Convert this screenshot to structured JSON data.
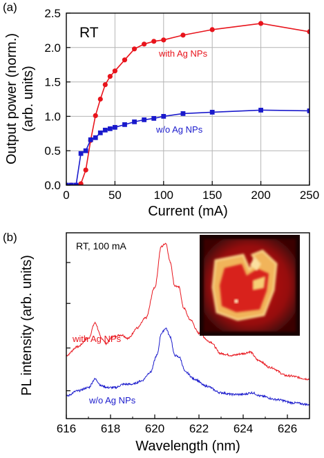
{
  "colors": {
    "with": "#e8141c",
    "without": "#1a1acc",
    "grid": "#b4b4b4"
  },
  "chart_data": [
    {
      "panel": "(a)",
      "type": "line",
      "corner_text": "RT",
      "xlabel": "Current (mA)",
      "ylabel_line1": "Output power (norm.)",
      "ylabel_line2": "(arb. units)",
      "xlim": [
        0,
        250
      ],
      "ylim": [
        0,
        2.5
      ],
      "x_ticks": [
        "0",
        "50",
        "100",
        "150",
        "200",
        "250"
      ],
      "y_ticks": [
        "0.0",
        "0.5",
        "1.0",
        "1.5",
        "2.0",
        "2.5"
      ],
      "grid": true,
      "series": [
        {
          "name": "with Ag NPs",
          "color": "#e8141c",
          "marker": "circle",
          "x": [
            0,
            5,
            10,
            15,
            20,
            25,
            30,
            35,
            40,
            45,
            50,
            60,
            70,
            80,
            90,
            100,
            120,
            150,
            200,
            250
          ],
          "y": [
            0,
            0,
            0,
            0.02,
            0.22,
            0.65,
            1.01,
            1.25,
            1.46,
            1.58,
            1.66,
            1.82,
            1.98,
            2.05,
            2.09,
            2.11,
            2.18,
            2.26,
            2.35,
            2.23
          ]
        },
        {
          "name": "w/o Ag NPs",
          "color": "#1a1acc",
          "marker": "square",
          "x": [
            0,
            5,
            10,
            15,
            20,
            25,
            30,
            35,
            40,
            45,
            50,
            60,
            70,
            80,
            90,
            100,
            120,
            150,
            200,
            250
          ],
          "y": [
            0,
            0,
            0,
            0.46,
            0.5,
            0.66,
            0.69,
            0.76,
            0.8,
            0.82,
            0.84,
            0.88,
            0.92,
            0.95,
            0.97,
            1.0,
            1.04,
            1.06,
            1.09,
            1.08
          ]
        }
      ]
    },
    {
      "panel": "(b)",
      "type": "line",
      "corner_text": "RT, 100 mA",
      "xlabel": "Wavelength (nm)",
      "ylabel": "PL intensity (arb. units)",
      "xlim": [
        616,
        627
      ],
      "x_ticks": [
        "616",
        "618",
        "620",
        "622",
        "624",
        "626"
      ],
      "inset": "false-color emission image of the device",
      "series": [
        {
          "name": "with Ag NPs",
          "color": "#e8141c",
          "x": [
            616.0,
            616.5,
            617.0,
            617.3,
            617.6,
            617.8,
            618.1,
            618.5,
            618.8,
            619.2,
            619.6,
            620.0,
            620.3,
            620.5,
            620.7,
            620.9,
            621.1,
            621.3,
            621.6,
            622.0,
            622.5,
            623.0,
            623.5,
            624.0,
            624.3,
            624.7,
            625.2,
            626.0,
            627.0
          ],
          "y": [
            0.34,
            0.39,
            0.44,
            0.53,
            0.44,
            0.41,
            0.45,
            0.46,
            0.44,
            0.5,
            0.56,
            0.74,
            0.98,
            1.0,
            0.89,
            0.75,
            0.74,
            0.62,
            0.55,
            0.47,
            0.42,
            0.35,
            0.34,
            0.35,
            0.36,
            0.31,
            0.27,
            0.22,
            0.2
          ]
        },
        {
          "name": "w/o Ag NPs",
          "color": "#1a1acc",
          "x": [
            616.0,
            616.5,
            617.0,
            617.3,
            617.6,
            617.9,
            618.2,
            618.6,
            619.0,
            619.4,
            619.8,
            620.1,
            620.3,
            620.5,
            620.7,
            620.9,
            621.1,
            621.4,
            621.8,
            622.3,
            623.0,
            623.5,
            624.0,
            624.4,
            624.8,
            625.5,
            626.3,
            627.0
          ],
          "y": [
            0.1,
            0.13,
            0.15,
            0.2,
            0.16,
            0.15,
            0.15,
            0.17,
            0.17,
            0.19,
            0.24,
            0.34,
            0.47,
            0.5,
            0.45,
            0.34,
            0.33,
            0.24,
            0.2,
            0.16,
            0.12,
            0.11,
            0.11,
            0.12,
            0.1,
            0.08,
            0.06,
            0.05
          ]
        }
      ]
    }
  ]
}
